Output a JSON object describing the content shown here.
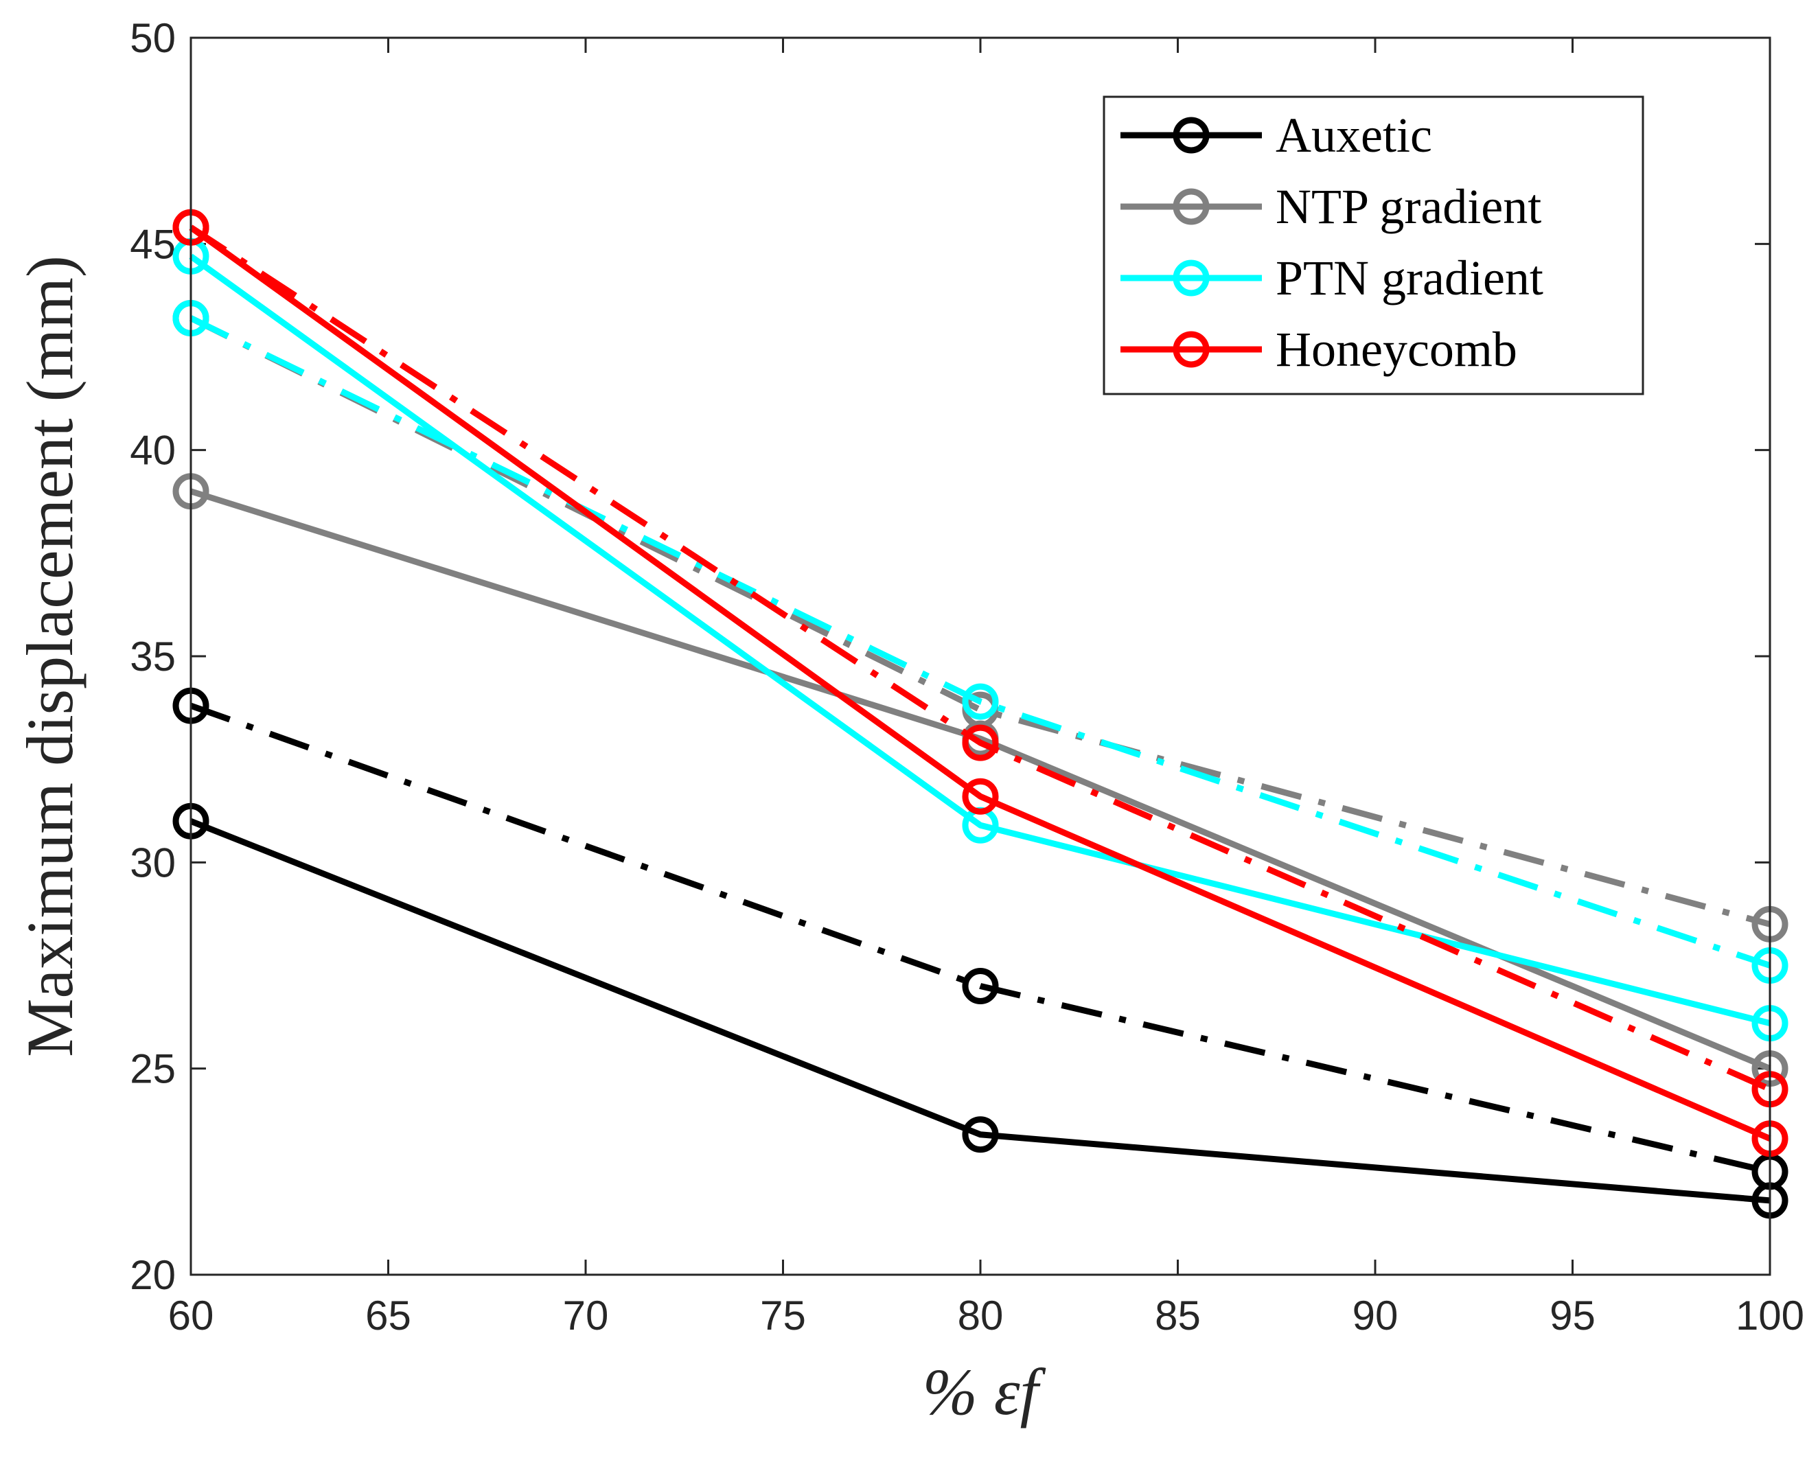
{
  "chart_data": {
    "type": "line",
    "title": "",
    "xlabel": "% εf",
    "ylabel": "Maximum displacement (mm)",
    "xlim": [
      60,
      100
    ],
    "ylim": [
      20,
      50
    ],
    "xticks": [
      60,
      65,
      70,
      75,
      80,
      85,
      90,
      95,
      100
    ],
    "yticks": [
      20,
      25,
      30,
      35,
      40,
      45,
      50
    ],
    "x": [
      60,
      80,
      100
    ],
    "legend_position": "top-right",
    "series": [
      {
        "name": "Auxetic",
        "color": "#000000",
        "style": "solid",
        "in_legend": true,
        "values": [
          31.0,
          23.4,
          21.8
        ]
      },
      {
        "name": "Auxetic (dash-dot)",
        "color": "#000000",
        "style": "dashdot",
        "in_legend": false,
        "values": [
          33.8,
          27.0,
          22.5
        ]
      },
      {
        "name": "NTP gradient",
        "color": "#808080",
        "style": "solid",
        "in_legend": true,
        "values": [
          39.0,
          33.0,
          25.0
        ]
      },
      {
        "name": "NTP gradient (dash-dot)",
        "color": "#808080",
        "style": "dashdot",
        "in_legend": false,
        "values": [
          43.2,
          33.7,
          28.5
        ]
      },
      {
        "name": "PTN gradient",
        "color": "#00ffff",
        "style": "solid",
        "in_legend": true,
        "values": [
          44.7,
          30.9,
          26.1
        ]
      },
      {
        "name": "PTN gradient (dash-dot)",
        "color": "#00ffff",
        "style": "dashdot",
        "in_legend": false,
        "values": [
          43.2,
          33.9,
          27.5
        ]
      },
      {
        "name": "Honeycomb",
        "color": "#ff0000",
        "style": "solid",
        "in_legend": true,
        "values": [
          45.4,
          31.6,
          23.3
        ]
      },
      {
        "name": "Honeycomb (dash-dot)",
        "color": "#ff0000",
        "style": "dashdot",
        "in_legend": false,
        "values": [
          45.4,
          32.9,
          24.5
        ]
      }
    ]
  }
}
